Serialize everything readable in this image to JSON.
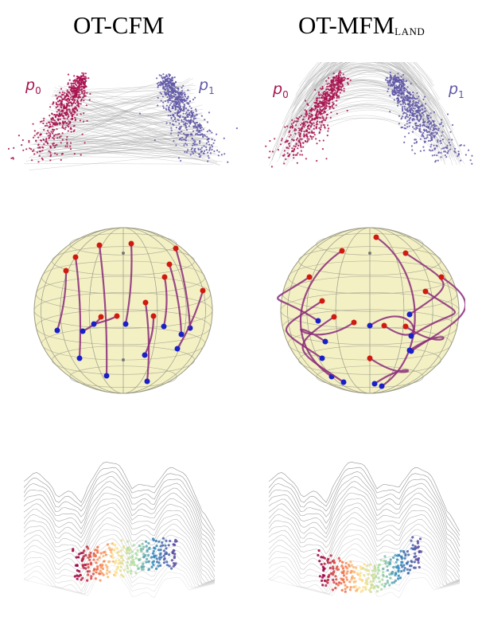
{
  "titles": {
    "left": "OT-CFM",
    "right_main": "OT-MFM",
    "right_sub": "LAND"
  },
  "labels": {
    "p0": "p",
    "p0_sub": "0",
    "p1": "p",
    "p1_sub": "1"
  },
  "colors": {
    "source": "#a8124f",
    "target": "#6058a6",
    "sphere_start": "#d01a10",
    "sphere_end": "#1a20c8",
    "sphere_path": "#8a2a7a",
    "sphere_fill": "#f3f0c4",
    "flow_lines": "#9a9a9a",
    "terrain": "#bfbfbf"
  },
  "panels": {
    "row1": "arch point clouds with transport lines",
    "row2": "sphere trajectories",
    "row3": "terrain flow"
  }
}
